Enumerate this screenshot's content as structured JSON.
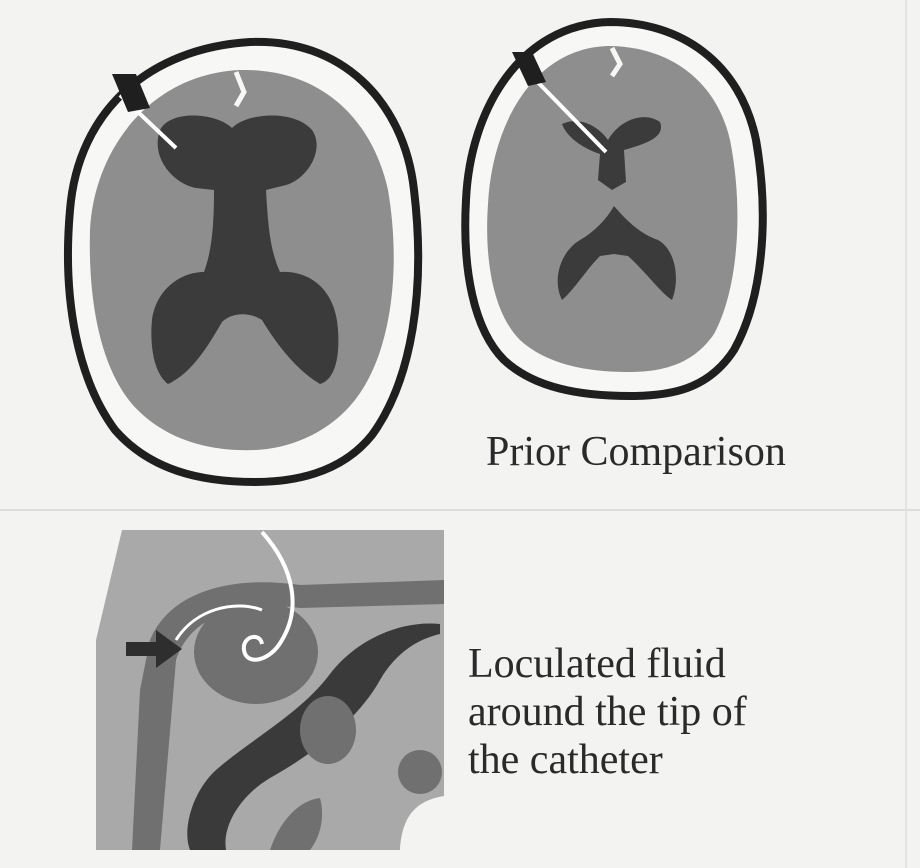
{
  "labels": {
    "prior_comparison": "Prior Comparison",
    "loculated_fluid": [
      "Loculated fluid",
      "around the tip of",
      "the catheter"
    ]
  },
  "colors": {
    "background": "#f3f3f1",
    "brain": "#8e8e8e",
    "ventricle": "#3b3b3b",
    "skull_outline": "#1f1f1f",
    "detail_background": "#a9a9a9",
    "detail_mid": "#707070",
    "detail_dark": "#3a3a3a",
    "catheter": "#ffffff"
  },
  "icons": [
    "arrow-icon",
    "catheter-icon"
  ]
}
